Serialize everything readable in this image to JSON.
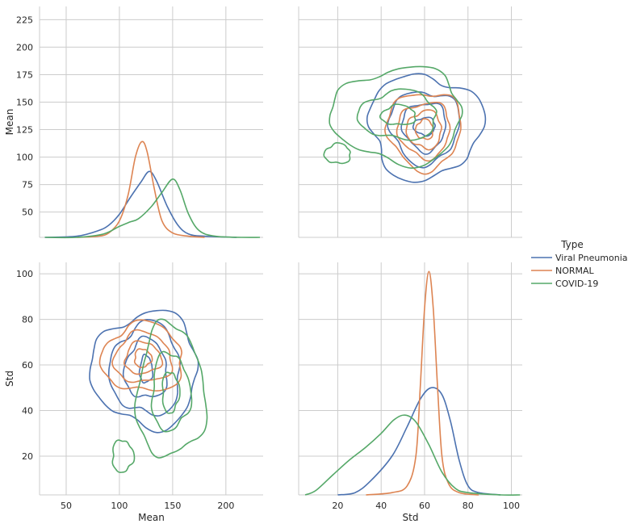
{
  "chart_data": {
    "type": "pairplot",
    "legend": {
      "title": "Type",
      "placement": "right",
      "entries": [
        {
          "name": "Viral Pneumonia",
          "color": "#4c72b0"
        },
        {
          "name": "NORMAL",
          "color": "#dd8452"
        },
        {
          "name": "COVID-19",
          "color": "#55a868"
        }
      ]
    },
    "variables": [
      "Mean",
      "Std"
    ],
    "grid": true,
    "panels": [
      {
        "row": 0,
        "col": 0,
        "kind": "kde1d",
        "variable": "Mean",
        "xlim": [
          25,
          235
        ],
        "ylim": [
          27,
          237
        ],
        "yticks": [
          50,
          75,
          100,
          125,
          150,
          175,
          200,
          225
        ],
        "ylabel": "Mean",
        "series": [
          {
            "name": "Viral Pneumonia",
            "peak_x": 128,
            "peak_height": 87,
            "curve": [
              [
                30,
                27
              ],
              [
                60,
                28
              ],
              [
                80,
                33
              ],
              [
                90,
                38
              ],
              [
                100,
                48
              ],
              [
                110,
                63
              ],
              [
                120,
                77
              ],
              [
                128,
                87
              ],
              [
                135,
                78
              ],
              [
                145,
                55
              ],
              [
                155,
                38
              ],
              [
                165,
                30
              ],
              [
                180,
                28
              ],
              [
                210,
                27
              ]
            ]
          },
          {
            "name": "NORMAL",
            "peak_x": 121,
            "peak_height": 114,
            "curve": [
              [
                60,
                27
              ],
              [
                80,
                28
              ],
              [
                90,
                31
              ],
              [
                100,
                42
              ],
              [
                108,
                65
              ],
              [
                115,
                100
              ],
              [
                121,
                114
              ],
              [
                126,
                105
              ],
              [
                133,
                70
              ],
              [
                140,
                42
              ],
              [
                150,
                31
              ],
              [
                165,
                28
              ],
              [
                180,
                27
              ]
            ]
          },
          {
            "name": "COVID-19",
            "peak_x": 150,
            "peak_height": 80,
            "curve": [
              [
                30,
                27
              ],
              [
                60,
                27
              ],
              [
                85,
                30
              ],
              [
                100,
                37
              ],
              [
                110,
                41
              ],
              [
                118,
                44
              ],
              [
                130,
                55
              ],
              [
                140,
                68
              ],
              [
                150,
                80
              ],
              [
                157,
                70
              ],
              [
                165,
                48
              ],
              [
                175,
                33
              ],
              [
                190,
                28
              ],
              [
                215,
                27
              ],
              [
                232,
                27
              ]
            ]
          }
        ]
      },
      {
        "row": 0,
        "col": 1,
        "kind": "kde2d",
        "x": "Std",
        "y": "Mean",
        "xlim": [
          2,
          105
        ],
        "ylim": [
          27,
          237
        ],
        "contours": [
          {
            "name": "Viral Pneumonia",
            "center": [
              60,
              128
            ],
            "rings": [
              {
                "rx": 26,
                "ry": 47
              },
              {
                "rx": 16,
                "ry": 33
              },
              {
                "rx": 10,
                "ry": 22
              },
              {
                "rx": 5,
                "ry": 8
              }
            ]
          },
          {
            "name": "NORMAL",
            "center": [
              60,
              125
            ],
            "rings": [
              {
                "rx": 17,
                "ry": 35
              },
              {
                "rx": 12,
                "ry": 25
              },
              {
                "rx": 8,
                "ry": 17
              },
              {
                "rx": 4,
                "ry": 9
              }
            ]
          },
          {
            "name": "COVID-19",
            "center": [
              48,
              138
            ],
            "rings": [
              {
                "rx": 30,
                "ry": 43
              },
              {
                "rx": 18,
                "ry": 22
              },
              {
                "rx": 8,
                "ry": 9
              }
            ]
          },
          {
            "name": "COVID-19",
            "center": [
              20,
              103
            ],
            "rings": [
              {
                "rx": 6,
                "ry": 9
              }
            ]
          }
        ]
      },
      {
        "row": 1,
        "col": 0,
        "kind": "kde2d",
        "x": "Mean",
        "y": "Std",
        "xlim": [
          25,
          235
        ],
        "ylim": [
          3,
          105
        ],
        "xticks": [
          50,
          100,
          150,
          200
        ],
        "yticks": [
          20,
          40,
          60,
          80,
          100
        ],
        "xlabel": "Mean",
        "ylabel": "Std",
        "contours": [
          {
            "name": "Viral Pneumonia",
            "center": [
              125,
              58
            ],
            "rings": [
              {
                "rx": 50,
                "ry": 25
              },
              {
                "rx": 33,
                "ry": 20
              },
              {
                "rx": 20,
                "ry": 13
              },
              {
                "rx": 6,
                "ry": 6
              }
            ]
          },
          {
            "name": "NORMAL",
            "center": [
              122,
              63
            ],
            "rings": [
              {
                "rx": 38,
                "ry": 15
              },
              {
                "rx": 27,
                "ry": 11
              },
              {
                "rx": 17,
                "ry": 7
              },
              {
                "rx": 8,
                "ry": 4
              }
            ]
          },
          {
            "name": "COVID-19",
            "center": [
              148,
              48
            ],
            "rings": [
              {
                "rx": 32,
                "ry": 29
              },
              {
                "rx": 18,
                "ry": 17
              },
              {
                "rx": 8,
                "ry": 9
              }
            ]
          },
          {
            "name": "COVID-19",
            "center": [
              103,
              20
            ],
            "rings": [
              {
                "rx": 10,
                "ry": 7
              }
            ]
          }
        ]
      },
      {
        "row": 1,
        "col": 1,
        "kind": "kde1d",
        "variable": "Std",
        "xlim": [
          2,
          105
        ],
        "ylim": [
          3,
          105
        ],
        "xticks": [
          20,
          40,
          60,
          80,
          100
        ],
        "xlabel": "Std",
        "series": [
          {
            "name": "Viral Pneumonia",
            "peak_x": 63,
            "peak_height": 50,
            "curve": [
              [
                20,
                3
              ],
              [
                28,
                4
              ],
              [
                35,
                9
              ],
              [
                45,
                20
              ],
              [
                52,
                33
              ],
              [
                58,
                45
              ],
              [
                63,
                50
              ],
              [
                68,
                47
              ],
              [
                72,
                35
              ],
              [
                76,
                18
              ],
              [
                80,
                7
              ],
              [
                85,
                4
              ],
              [
                95,
                3
              ]
            ]
          },
          {
            "name": "NORMAL",
            "peak_x": 62,
            "peak_height": 101,
            "curve": [
              [
                33,
                3
              ],
              [
                45,
                4
              ],
              [
                52,
                7
              ],
              [
                56,
                20
              ],
              [
                58,
                50
              ],
              [
                60,
                85
              ],
              [
                62,
                101
              ],
              [
                64,
                85
              ],
              [
                66,
                50
              ],
              [
                68,
                20
              ],
              [
                71,
                8
              ],
              [
                76,
                4
              ],
              [
                85,
                3
              ]
            ]
          },
          {
            "name": "COVID-19",
            "peak_x": 51,
            "peak_height": 38,
            "curve": [
              [
                5,
                3
              ],
              [
                10,
                5
              ],
              [
                18,
                12
              ],
              [
                25,
                18
              ],
              [
                33,
                24
              ],
              [
                40,
                30
              ],
              [
                46,
                36
              ],
              [
                51,
                38
              ],
              [
                56,
                35
              ],
              [
                62,
                25
              ],
              [
                68,
                13
              ],
              [
                74,
                6
              ],
              [
                80,
                4
              ],
              [
                95,
                3
              ],
              [
                104,
                3
              ]
            ]
          }
        ]
      }
    ]
  }
}
